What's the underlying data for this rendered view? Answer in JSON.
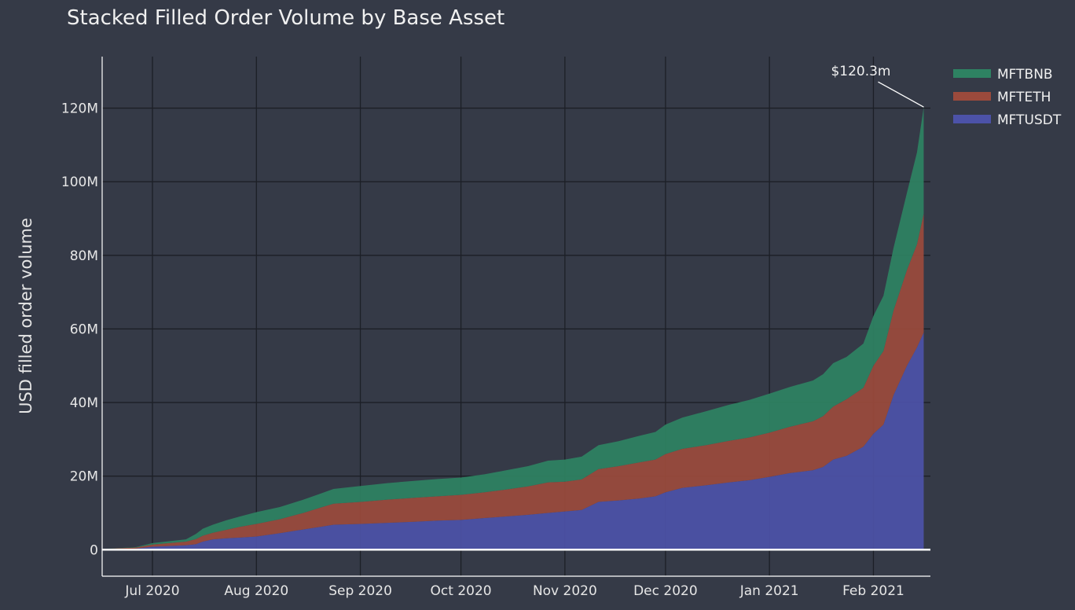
{
  "chart_data": {
    "type": "area",
    "stacked": true,
    "title": "Stacked Filled Order Volume by Base Asset",
    "xlabel": "",
    "ylabel": "USD filled order volume",
    "x_tick_labels": [
      "Jul 2020",
      "Aug 2020",
      "Sep 2020",
      "Oct 2020",
      "Nov 2020",
      "Dec 2020",
      "Jan 2021",
      "Feb 2021"
    ],
    "x_tick_days": [
      0,
      31,
      62,
      92,
      123,
      153,
      184,
      215
    ],
    "xlim_days": [
      -15,
      232
    ],
    "y_tick_values": [
      0,
      20,
      40,
      60,
      80,
      100,
      120
    ],
    "y_tick_labels": [
      "0",
      "20M",
      "40M",
      "60M",
      "80M",
      "100M",
      "120M"
    ],
    "ylim": [
      -7.2,
      134
    ],
    "x_days": [
      -15,
      -5,
      0,
      10,
      13,
      15,
      18,
      22,
      26,
      31,
      38,
      45,
      50,
      54,
      62,
      70,
      78,
      85,
      92,
      99,
      105,
      112,
      118,
      123,
      128,
      133,
      139,
      145,
      150,
      153,
      158,
      165,
      172,
      178,
      184,
      190,
      197,
      200,
      203,
      207,
      212,
      215,
      218,
      221,
      225,
      228,
      230
    ],
    "series": [
      {
        "name": "MFTUSDT",
        "color": "#4c52a8",
        "values": [
          0.1,
          0.3,
          0.8,
          1.2,
          1.5,
          2.2,
          2.8,
          3.1,
          3.3,
          3.6,
          4.5,
          5.5,
          6.2,
          6.8,
          7.0,
          7.3,
          7.6,
          7.9,
          8.1,
          8.6,
          9.0,
          9.5,
          10.0,
          10.4,
          10.8,
          13.0,
          13.4,
          13.9,
          14.5,
          15.6,
          16.8,
          17.5,
          18.3,
          18.9,
          19.8,
          20.8,
          21.6,
          22.5,
          24.5,
          25.5,
          28.0,
          31.5,
          34.0,
          42.0,
          50.0,
          55.0,
          59.0
        ]
      },
      {
        "name": "MFTETH",
        "color": "#9b4a3c",
        "values": [
          0.1,
          0.3,
          0.6,
          1.0,
          1.4,
          1.6,
          1.8,
          2.3,
          2.9,
          3.4,
          3.8,
          4.5,
          5.2,
          5.7,
          6.0,
          6.3,
          6.5,
          6.6,
          6.8,
          7.0,
          7.3,
          7.7,
          8.3,
          8.1,
          8.3,
          8.9,
          9.3,
          9.8,
          10.0,
          10.4,
          10.6,
          10.9,
          11.3,
          11.6,
          12.0,
          12.6,
          13.3,
          13.8,
          14.4,
          15.4,
          16.0,
          18.5,
          20.0,
          23.0,
          26.0,
          28.0,
          32.3
        ]
      },
      {
        "name": "MFTBNB",
        "color": "#2e8262",
        "values": [
          0.0,
          0.1,
          0.4,
          0.6,
          1.4,
          1.9,
          2.2,
          2.6,
          2.8,
          3.2,
          3.3,
          3.6,
          3.8,
          4.0,
          4.3,
          4.5,
          4.6,
          4.7,
          4.7,
          4.9,
          5.2,
          5.5,
          5.9,
          6.0,
          6.2,
          6.5,
          6.8,
          7.2,
          7.5,
          8.0,
          8.5,
          9.2,
          9.8,
          10.2,
          10.6,
          10.8,
          11.1,
          11.4,
          11.8,
          11.5,
          12.0,
          13.5,
          15.0,
          17.0,
          21.0,
          25.0,
          29.0
        ]
      }
    ],
    "legend": {
      "position": "top-right",
      "order": [
        "MFTBNB",
        "MFTETH",
        "MFTUSDT"
      ]
    },
    "annotation": {
      "text": "$120.3m",
      "x_day": 230,
      "y": 120.3
    },
    "grid": true
  }
}
